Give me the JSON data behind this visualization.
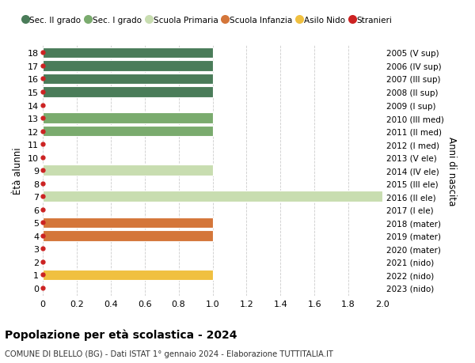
{
  "title": "Popolazione per età scolastica - 2024",
  "subtitle": "COMUNE DI BLELLO (BG) - Dati ISTAT 1° gennaio 2024 - Elaborazione TUTTITALIA.IT",
  "ylabel_left": "Ètà alunni",
  "ylabel_right": "Anni di nascita",
  "xlim": [
    0,
    2.0
  ],
  "xticks": [
    0,
    0.2,
    0.4,
    0.6,
    0.8,
    1.0,
    1.2,
    1.4,
    1.6,
    1.8,
    2.0
  ],
  "ages": [
    18,
    17,
    16,
    15,
    14,
    13,
    12,
    11,
    10,
    9,
    8,
    7,
    6,
    5,
    4,
    3,
    2,
    1,
    0
  ],
  "right_labels": [
    "2005 (V sup)",
    "2006 (IV sup)",
    "2007 (III sup)",
    "2008 (II sup)",
    "2009 (I sup)",
    "2010 (III med)",
    "2011 (II med)",
    "2012 (I med)",
    "2013 (V ele)",
    "2014 (IV ele)",
    "2015 (III ele)",
    "2016 (II ele)",
    "2017 (I ele)",
    "2018 (mater)",
    "2019 (mater)",
    "2020 (mater)",
    "2021 (nido)",
    "2022 (nido)",
    "2023 (nido)"
  ],
  "bar_data": [
    {
      "age": 18,
      "value": 1.0,
      "color": "#4a7c59"
    },
    {
      "age": 17,
      "value": 1.0,
      "color": "#4a7c59"
    },
    {
      "age": 16,
      "value": 1.0,
      "color": "#4a7c59"
    },
    {
      "age": 15,
      "value": 1.0,
      "color": "#4a7c59"
    },
    {
      "age": 14,
      "value": 0,
      "color": "#4a7c59"
    },
    {
      "age": 13,
      "value": 1.0,
      "color": "#7aab6e"
    },
    {
      "age": 12,
      "value": 1.0,
      "color": "#7aab6e"
    },
    {
      "age": 11,
      "value": 0,
      "color": "#7aab6e"
    },
    {
      "age": 10,
      "value": 0,
      "color": "#c8ddb0"
    },
    {
      "age": 9,
      "value": 1.0,
      "color": "#c8ddb0"
    },
    {
      "age": 8,
      "value": 0,
      "color": "#c8ddb0"
    },
    {
      "age": 7,
      "value": 2.0,
      "color": "#c8ddb0"
    },
    {
      "age": 6,
      "value": 0,
      "color": "#c8ddb0"
    },
    {
      "age": 5,
      "value": 1.0,
      "color": "#d4763a"
    },
    {
      "age": 4,
      "value": 1.0,
      "color": "#d4763a"
    },
    {
      "age": 3,
      "value": 0,
      "color": "#d4763a"
    },
    {
      "age": 2,
      "value": 0,
      "color": "#f0c040"
    },
    {
      "age": 1,
      "value": 1.0,
      "color": "#f0c040"
    },
    {
      "age": 0,
      "value": 0,
      "color": "#f0c040"
    }
  ],
  "legend_items": [
    {
      "label": "Sec. II grado",
      "color": "#4a7c59"
    },
    {
      "label": "Sec. I grado",
      "color": "#7aab6e"
    },
    {
      "label": "Scuola Primaria",
      "color": "#c8ddb0"
    },
    {
      "label": "Scuola Infanzia",
      "color": "#d4763a"
    },
    {
      "label": "Asilo Nido",
      "color": "#f0c040"
    },
    {
      "label": "Stranieri",
      "color": "#cc2222"
    }
  ],
  "dot_color": "#cc2222",
  "background_color": "#ffffff",
  "grid_color": "#cccccc",
  "bar_height": 0.82
}
